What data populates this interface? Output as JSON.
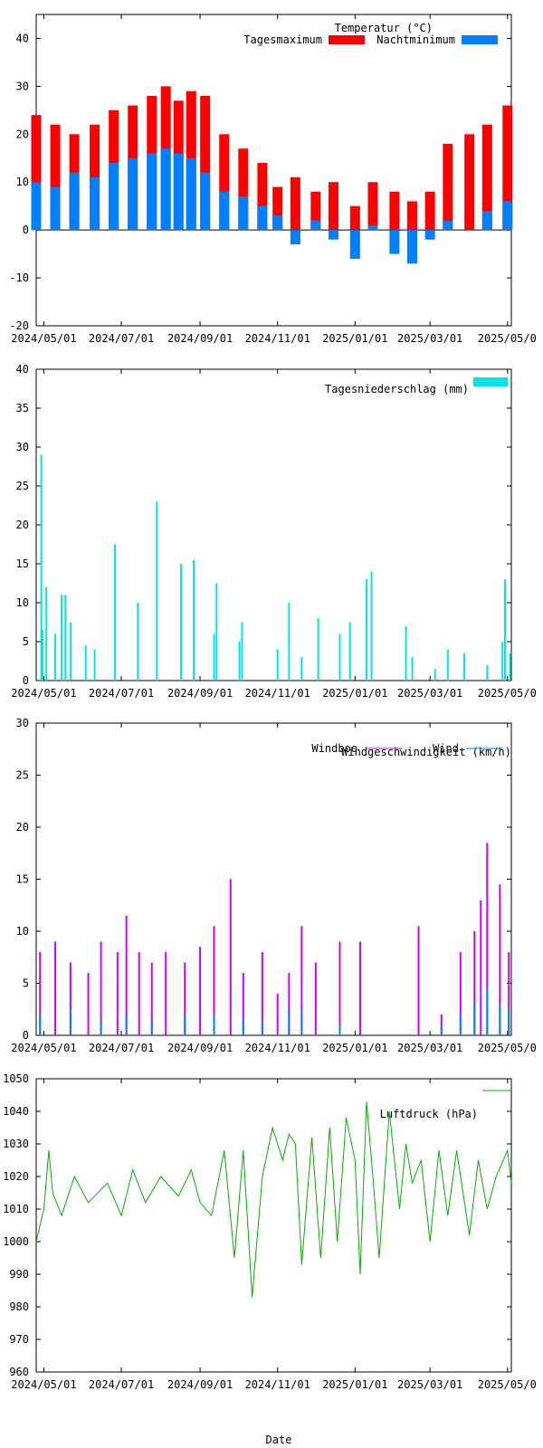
{
  "x_axis": {
    "ticks": [
      "2024/05/01",
      "2024/07/01",
      "2024/09/01",
      "2024/11/01",
      "2025/01/01",
      "2025/03/01",
      "2025/05/0"
    ],
    "label": "Date"
  },
  "chart_data": [
    {
      "type": "bar",
      "title": "Temperatur (°C)",
      "ylim": [
        -20,
        45
      ],
      "yticks": [
        "-20",
        "-10",
        "0",
        "10",
        "20",
        "30",
        "40"
      ],
      "legend_placement": "top-right",
      "x_range": [
        "2024/04/25",
        "2025/05/03"
      ],
      "series": [
        {
          "name": "Tagesmaximum",
          "color": "#ff0000",
          "x": [
            "2024/04/25",
            "2024/05/10",
            "2024/05/25",
            "2024/06/10",
            "2024/06/25",
            "2024/07/10",
            "2024/07/25",
            "2024/08/05",
            "2024/08/15",
            "2024/08/25",
            "2024/09/05",
            "2024/09/20",
            "2024/10/05",
            "2024/10/20",
            "2024/11/01",
            "2024/11/15",
            "2024/12/01",
            "2024/12/15",
            "2025/01/01",
            "2025/01/15",
            "2025/02/01",
            "2025/02/15",
            "2025/03/01",
            "2025/03/15",
            "2025/04/01",
            "2025/04/15",
            "2025/05/01"
          ],
          "values": [
            24,
            22,
            20,
            22,
            25,
            26,
            28,
            30,
            27,
            29,
            28,
            20,
            17,
            14,
            9,
            11,
            8,
            10,
            5,
            10,
            8,
            6,
            8,
            18,
            20,
            22,
            26
          ]
        },
        {
          "name": "Nachtminimum",
          "color": "#0080ff",
          "x": [
            "2024/04/25",
            "2024/05/10",
            "2024/05/25",
            "2024/06/10",
            "2024/06/25",
            "2024/07/10",
            "2024/07/25",
            "2024/08/05",
            "2024/08/15",
            "2024/08/25",
            "2024/09/05",
            "2024/09/20",
            "2024/10/05",
            "2024/10/20",
            "2024/11/01",
            "2024/11/15",
            "2024/12/01",
            "2024/12/15",
            "2025/01/01",
            "2025/01/15",
            "2025/02/01",
            "2025/02/15",
            "2025/03/01",
            "2025/03/15",
            "2025/04/01",
            "2025/04/15",
            "2025/05/01"
          ],
          "values": [
            10,
            9,
            12,
            11,
            14,
            15,
            16,
            17,
            16,
            15,
            12,
            8,
            7,
            5,
            3,
            -3,
            2,
            -2,
            -6,
            1,
            -5,
            -7,
            -2,
            2,
            0,
            4,
            6
          ]
        }
      ]
    },
    {
      "type": "bar",
      "title": "Tagesniederschlag (mm)",
      "ylim": [
        0,
        40
      ],
      "yticks": [
        "0",
        "5",
        "10",
        "15",
        "20",
        "25",
        "30",
        "35",
        "40"
      ],
      "legend_placement": "top-right",
      "series": [
        {
          "name": "Tagesniederschlag (mm)",
          "color": "#00e5e5",
          "x": [
            "2024/04/29",
            "2024/04/30",
            "2024/05/03",
            "2024/05/10",
            "2024/05/15",
            "2024/05/18",
            "2024/05/22",
            "2024/06/03",
            "2024/06/10",
            "2024/06/26",
            "2024/07/14",
            "2024/07/29",
            "2024/08/17",
            "2024/08/27",
            "2024/09/12",
            "2024/09/14",
            "2024/10/02",
            "2024/10/04",
            "2024/11/01",
            "2024/11/10",
            "2024/11/20",
            "2024/12/03",
            "2024/12/20",
            "2024/12/28",
            "2025/01/10",
            "2025/01/14",
            "2025/02/10",
            "2025/02/15",
            "2025/03/05",
            "2025/03/15",
            "2025/03/28",
            "2025/04/15",
            "2025/04/27",
            "2025/04/29",
            "2025/05/03"
          ],
          "values": [
            29,
            6.5,
            12,
            6,
            11,
            11,
            7.5,
            4.5,
            4,
            17.5,
            10,
            23,
            15,
            15.5,
            6,
            12.5,
            5,
            7.5,
            4,
            10,
            3,
            8,
            6,
            7.5,
            13,
            14,
            7,
            3,
            1.5,
            4,
            3.5,
            2,
            5,
            13,
            3.5
          ]
        }
      ]
    },
    {
      "type": "bar",
      "title": "Windgeschwindigkeit (km/h)",
      "ylim": [
        0,
        30
      ],
      "yticks": [
        "0",
        "5",
        "10",
        "15",
        "20",
        "25",
        "30"
      ],
      "legend_placement": "top-right",
      "series": [
        {
          "name": "Windboe",
          "color": "#cc00ff",
          "x": [
            "2024/04/28",
            "2024/05/10",
            "2024/05/22",
            "2024/06/05",
            "2024/06/15",
            "2024/06/28",
            "2024/07/05",
            "2024/07/15",
            "2024/07/25",
            "2024/08/05",
            "2024/08/20",
            "2024/09/01",
            "2024/09/12",
            "2024/09/25",
            "2024/10/05",
            "2024/10/20",
            "2024/11/01",
            "2024/11/10",
            "2024/11/20",
            "2024/12/01",
            "2024/12/20",
            "2025/01/05",
            "2025/02/20",
            "2025/03/10",
            "2025/03/25",
            "2025/04/05",
            "2025/04/10",
            "2025/04/15",
            "2025/04/25",
            "2025/05/02"
          ],
          "values": [
            8,
            9,
            7,
            6,
            9,
            8,
            11.5,
            8,
            7,
            8,
            7,
            8.5,
            10.5,
            15,
            6,
            8,
            4,
            6,
            10.5,
            7,
            9,
            9,
            10.5,
            2,
            8,
            10,
            13,
            18.5,
            14.5,
            8
          ]
        },
        {
          "name": "Wind",
          "color": "#0080ff",
          "x": [
            "2024/04/28",
            "2024/05/22",
            "2024/06/15",
            "2024/07/05",
            "2024/07/25",
            "2024/08/20",
            "2024/09/12",
            "2024/10/05",
            "2024/10/20",
            "2024/11/10",
            "2024/11/20",
            "2024/12/20",
            "2025/03/10",
            "2025/03/25",
            "2025/04/05",
            "2025/04/15",
            "2025/04/25",
            "2025/05/02"
          ],
          "values": [
            2,
            2.5,
            1.5,
            2,
            1.5,
            2,
            2,
            1.5,
            1.5,
            2.5,
            2.5,
            1,
            1,
            2,
            3,
            4.5,
            3,
            2.5
          ]
        }
      ]
    },
    {
      "type": "line",
      "title": "Luftdruck (hPa)",
      "xlabel": "Date",
      "ylim": [
        960,
        1050
      ],
      "yticks": [
        "960",
        "970",
        "980",
        "990",
        "1000",
        "1010",
        "1020",
        "1030",
        "1040",
        "1050"
      ],
      "legend_placement": "top-right",
      "series": [
        {
          "name": "Luftdruck (hPa)",
          "color": "#00b000",
          "x": [
            "2024/04/25",
            "2024/05/01",
            "2024/05/05",
            "2024/05/08",
            "2024/05/15",
            "2024/05/25",
            "2024/06/05",
            "2024/06/20",
            "2024/07/01",
            "2024/07/10",
            "2024/07/20",
            "2024/08/01",
            "2024/08/15",
            "2024/08/25",
            "2024/09/01",
            "2024/09/10",
            "2024/09/20",
            "2024/09/28",
            "2024/10/05",
            "2024/10/12",
            "2024/10/20",
            "2024/10/28",
            "2024/11/05",
            "2024/11/10",
            "2024/11/15",
            "2024/11/20",
            "2024/11/28",
            "2024/12/05",
            "2024/12/12",
            "2024/12/18",
            "2024/12/25",
            "2025/01/01",
            "2025/01/05",
            "2025/01/10",
            "2025/01/15",
            "2025/01/20",
            "2025/01/28",
            "2025/02/05",
            "2025/02/10",
            "2025/02/15",
            "2025/02/22",
            "2025/03/01",
            "2025/03/08",
            "2025/03/15",
            "2025/03/22",
            "2025/04/01",
            "2025/04/08",
            "2025/04/15",
            "2025/04/22",
            "2025/05/01",
            "2025/05/04"
          ],
          "values": [
            1000,
            1010,
            1028,
            1015,
            1008,
            1020,
            1012,
            1018,
            1008,
            1022,
            1012,
            1020,
            1014,
            1022,
            1012,
            1008,
            1028,
            995,
            1028,
            983,
            1020,
            1035,
            1025,
            1033,
            1030,
            993,
            1032,
            995,
            1035,
            1000,
            1038,
            1025,
            990,
            1043,
            1020,
            995,
            1040,
            1010,
            1030,
            1018,
            1025,
            1000,
            1028,
            1008,
            1028,
            1002,
            1025,
            1010,
            1020,
            1028,
            1018
          ]
        }
      ]
    }
  ]
}
